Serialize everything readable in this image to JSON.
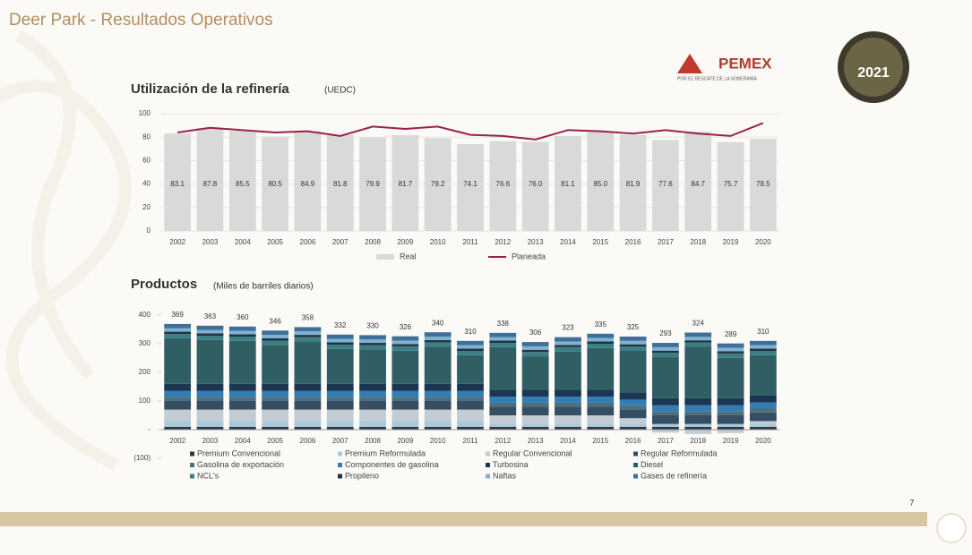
{
  "page": {
    "title": "Deer Park - Resultados Operativos",
    "page_number": "7"
  },
  "logo": {
    "brand": "PEMEX",
    "tagline": "POR EL RESCATE DE LA SOBERANÍA",
    "year": "2021"
  },
  "chart_data": [
    {
      "type": "bar",
      "title": "Utilización de la refinería",
      "subtitle": "(UEDC)",
      "categories": [
        "2002",
        "2003",
        "2004",
        "2005",
        "2006",
        "2007",
        "2008",
        "2009",
        "2010",
        "2011",
        "2012",
        "2013",
        "2014",
        "2015",
        "2016",
        "2017",
        "2018",
        "2019",
        "2020"
      ],
      "ylim": [
        0,
        100
      ],
      "yticks": [
        0,
        20,
        40,
        60,
        80,
        100
      ],
      "grid": true,
      "series": [
        {
          "name": "Real",
          "type": "bar",
          "color": "#d9d9d9",
          "values": [
            83.1,
            87.8,
            85.5,
            80.5,
            84.9,
            81.8,
            79.9,
            81.7,
            79.2,
            74.1,
            76.6,
            76.0,
            81.1,
            85.0,
            81.9,
            77.6,
            84.7,
            75.7,
            78.5
          ],
          "value_labels": [
            "83.1",
            "87.8",
            "85.5",
            "80.5",
            "84.9",
            "81.8",
            "79.9",
            "81.7",
            "79.2",
            "74.1",
            "76.6",
            "76.0",
            "81.1",
            "85.0",
            "81.9",
            "77.6",
            "84.7",
            "75.7",
            "78.5"
          ]
        },
        {
          "name": "Planeada",
          "type": "line",
          "color": "#9b2247",
          "values": [
            84,
            88,
            86,
            84,
            85,
            81,
            89,
            87,
            89,
            82,
            81,
            78,
            86,
            85,
            83,
            86,
            83,
            81,
            92
          ]
        }
      ]
    },
    {
      "type": "stacked_bar",
      "title": "Productos",
      "subtitle": "(Miles de barriles diarios)",
      "categories": [
        "2002",
        "2003",
        "2004",
        "2005",
        "2006",
        "2007",
        "2008",
        "2009",
        "2010",
        "2011",
        "2012",
        "2013",
        "2014",
        "2015",
        "2016",
        "2017",
        "2018",
        "2019",
        "2020"
      ],
      "ylim": [
        -100,
        400
      ],
      "yticks": [
        {
          "value": -100,
          "label": "(100)"
        },
        {
          "value": 0,
          "label": "-"
        },
        100,
        200,
        300,
        400
      ],
      "totals": [
        369,
        363,
        360,
        346,
        358,
        332,
        330,
        326,
        340,
        310,
        338,
        306,
        323,
        335,
        325,
        293,
        324,
        289,
        310
      ],
      "series": [
        {
          "name": "Premium Convencional",
          "color": "#2b3a4a",
          "values": [
            10,
            10,
            10,
            10,
            10,
            10,
            10,
            10,
            10,
            10,
            10,
            10,
            10,
            10,
            10,
            10,
            10,
            10,
            10
          ]
        },
        {
          "name": "Premium  Reformulada",
          "color": "#a9c9d9",
          "values": [
            20,
            20,
            20,
            20,
            20,
            20,
            20,
            20,
            20,
            20,
            10,
            10,
            10,
            10,
            10,
            10,
            10,
            10,
            10
          ]
        },
        {
          "name": "Regular Convencional",
          "color": "#c3ccd3",
          "values": [
            40,
            40,
            40,
            40,
            40,
            40,
            40,
            40,
            40,
            40,
            30,
            30,
            30,
            30,
            20,
            -10,
            -15,
            -12,
            10
          ]
        },
        {
          "name": "Regular Reformulada",
          "color": "#354e63",
          "values": [
            30,
            30,
            30,
            30,
            30,
            30,
            30,
            30,
            30,
            30,
            30,
            30,
            30,
            30,
            30,
            30,
            30,
            30,
            30
          ]
        },
        {
          "name": "Gasolina de exportación",
          "color": "#4f6f7f",
          "values": [
            15,
            15,
            15,
            15,
            15,
            15,
            15,
            15,
            15,
            15,
            15,
            15,
            15,
            15,
            15,
            15,
            15,
            15,
            15
          ]
        },
        {
          "name": "Componentes de gasolina",
          "color": "#2e7fb8",
          "values": [
            20,
            20,
            20,
            20,
            20,
            20,
            20,
            20,
            20,
            20,
            20,
            20,
            20,
            20,
            20,
            20,
            20,
            20,
            20
          ]
        },
        {
          "name": "Turbosina",
          "color": "#1c3550",
          "values": [
            25,
            25,
            25,
            25,
            25,
            25,
            25,
            25,
            25,
            25,
            25,
            25,
            25,
            25,
            25,
            25,
            25,
            25,
            25
          ]
        },
        {
          "name": "Diesel",
          "color": "#2f5e63",
          "values": [
            159,
            153,
            150,
            136,
            148,
            122,
            120,
            116,
            130,
            100,
            148,
            116,
            133,
            145,
            145,
            143,
            179,
            141,
            140
          ]
        },
        {
          "name": "NCL's",
          "color": "#3b7f86",
          "values": [
            15,
            15,
            15,
            15,
            15,
            15,
            15,
            15,
            15,
            15,
            15,
            15,
            15,
            15,
            15,
            15,
            15,
            15,
            15
          ]
        },
        {
          "name": "Propileno",
          "color": "#24323d",
          "values": [
            8,
            8,
            8,
            8,
            8,
            8,
            8,
            8,
            8,
            8,
            8,
            8,
            8,
            8,
            8,
            8,
            8,
            8,
            8
          ]
        },
        {
          "name": "Naftas",
          "color": "#7fb3d5",
          "values": [
            12,
            12,
            12,
            12,
            12,
            12,
            12,
            12,
            12,
            12,
            12,
            12,
            12,
            12,
            12,
            12,
            12,
            12,
            12
          ]
        },
        {
          "name": "Gases de refinería",
          "color": "#3f6f96",
          "values": [
            15,
            15,
            15,
            15,
            15,
            15,
            15,
            15,
            15,
            15,
            15,
            15,
            15,
            15,
            15,
            15,
            15,
            15,
            15
          ]
        }
      ]
    }
  ]
}
